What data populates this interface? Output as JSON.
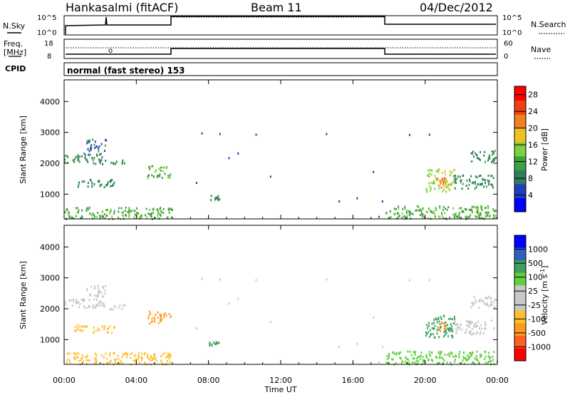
{
  "header": {
    "station": "Hankasalmi (fitACF)",
    "beam": "Beam 11",
    "date": "04/Dec/2012"
  },
  "top_panels": {
    "nsky_label": "N.Sky",
    "nsky_ticks": [
      "10^5",
      "10^0"
    ],
    "nsearch_label": "N.Search",
    "nsearch_ticks": [
      "10^5",
      "10^0"
    ],
    "freq_label_1": "Freq.",
    "freq_label_2": "[MHz]",
    "freq_ticks": [
      "18",
      "8"
    ],
    "nave_label": "Nave",
    "nave_ticks": [
      "60",
      "0"
    ],
    "cpid_label": "CPID",
    "cpid_value": "normal (fast stereo) 153"
  },
  "colors": {
    "power_scale": [
      "#0000ff",
      "#1f3fbf",
      "#2f7f5f",
      "#3fa03f",
      "#7fd03f",
      "#f0c020",
      "#f08020",
      "#f04010",
      "#ff0000"
    ],
    "velocity_scale": [
      "#ff0000",
      "#ff6020",
      "#ff9a20",
      "#ffc030",
      "#c8c8c8",
      "#c8c8c8",
      "#60d040",
      "#3f9f5f",
      "#2f5fbf",
      "#0000ff"
    ],
    "ground_scatter": "#c8c8c8"
  },
  "chart_data": [
    {
      "type": "heatmap",
      "name": "power",
      "xlabel": "",
      "ylabel": "Slant Range [km]",
      "x_ticks": [
        "00:00",
        "04:00",
        "08:00",
        "12:00",
        "16:00",
        "20:00",
        "00:00"
      ],
      "y_ticks": [
        "1000",
        "2000",
        "3000",
        "4000"
      ],
      "ylim": [
        200,
        4700
      ],
      "xlim_hours": [
        0,
        24
      ],
      "colorbar_label": "Power [dB]",
      "colorbar_ticks": [
        "4",
        "8",
        "12",
        "16",
        "20",
        "24",
        "28"
      ],
      "colorbar_range": [
        0,
        30
      ],
      "patches": [
        {
          "t0": 0.0,
          "t1": 2.2,
          "r0": 2050,
          "r1": 2350,
          "v": 7
        },
        {
          "t0": 1.5,
          "t1": 3.4,
          "r0": 2000,
          "r1": 2150,
          "v": 9
        },
        {
          "t0": 1.2,
          "t1": 2.3,
          "r0": 2400,
          "r1": 2800,
          "v": 6
        },
        {
          "t0": 0.5,
          "t1": 2.8,
          "r0": 1250,
          "r1": 1500,
          "v": 8
        },
        {
          "t0": 4.6,
          "t1": 5.9,
          "r0": 1550,
          "r1": 1950,
          "v": 11
        },
        {
          "t0": 8.0,
          "t1": 8.6,
          "r0": 820,
          "r1": 980,
          "v": 7
        },
        {
          "t0": 20.0,
          "t1": 21.6,
          "r0": 1100,
          "r1": 1850,
          "v": 14
        },
        {
          "t0": 20.6,
          "t1": 21.1,
          "r0": 1300,
          "r1": 1600,
          "v": 22
        },
        {
          "t0": 21.6,
          "t1": 23.8,
          "r0": 1200,
          "r1": 1650,
          "v": 8
        },
        {
          "t0": 22.5,
          "t1": 23.9,
          "r0": 2050,
          "r1": 2450,
          "v": 9
        },
        {
          "t0": 0.0,
          "t1": 6.0,
          "r0": 220,
          "r1": 600,
          "v": 10
        },
        {
          "t0": 17.8,
          "t1": 24.0,
          "r0": 220,
          "r1": 650,
          "v": 10
        }
      ]
    },
    {
      "type": "heatmap",
      "name": "velocity",
      "xlabel": "Time UT",
      "ylabel": "Slant Range [km]",
      "x_ticks": [
        "00:00",
        "04:00",
        "08:00",
        "12:00",
        "16:00",
        "20:00",
        "00:00"
      ],
      "y_ticks": [
        "1000",
        "2000",
        "3000",
        "4000"
      ],
      "ylim": [
        200,
        4700
      ],
      "xlim_hours": [
        0,
        24
      ],
      "colorbar_label": "Velocity [m s^-1]",
      "colorbar_ticks": [
        "1000",
        "500",
        "100",
        "25",
        "-25",
        "-100",
        "-500",
        "-1000"
      ],
      "patches": [
        {
          "t0": 0.0,
          "t1": 2.2,
          "r0": 2050,
          "r1": 2350,
          "v": 0
        },
        {
          "t0": 1.5,
          "t1": 3.4,
          "r0": 2000,
          "r1": 2150,
          "v": 0
        },
        {
          "t0": 1.2,
          "t1": 2.3,
          "r0": 2400,
          "r1": 2800,
          "v": 0
        },
        {
          "t0": 0.5,
          "t1": 2.8,
          "r0": 1250,
          "r1": 1500,
          "v": -80
        },
        {
          "t0": 4.6,
          "t1": 5.9,
          "r0": 1550,
          "r1": 1950,
          "v": -300
        },
        {
          "t0": 8.0,
          "t1": 8.6,
          "r0": 820,
          "r1": 980,
          "v": 150
        },
        {
          "t0": 20.0,
          "t1": 21.6,
          "r0": 1100,
          "r1": 1850,
          "v": 200
        },
        {
          "t0": 20.6,
          "t1": 21.1,
          "r0": 1300,
          "r1": 1600,
          "v": -200
        },
        {
          "t0": 21.6,
          "t1": 23.8,
          "r0": 1200,
          "r1": 1650,
          "v": 0
        },
        {
          "t0": 22.5,
          "t1": 23.9,
          "r0": 2050,
          "r1": 2450,
          "v": 0
        },
        {
          "t0": 0.0,
          "t1": 6.0,
          "r0": 220,
          "r1": 600,
          "v": -60
        },
        {
          "t0": 17.8,
          "t1": 24.0,
          "r0": 220,
          "r1": 650,
          "v": 60
        }
      ]
    }
  ]
}
